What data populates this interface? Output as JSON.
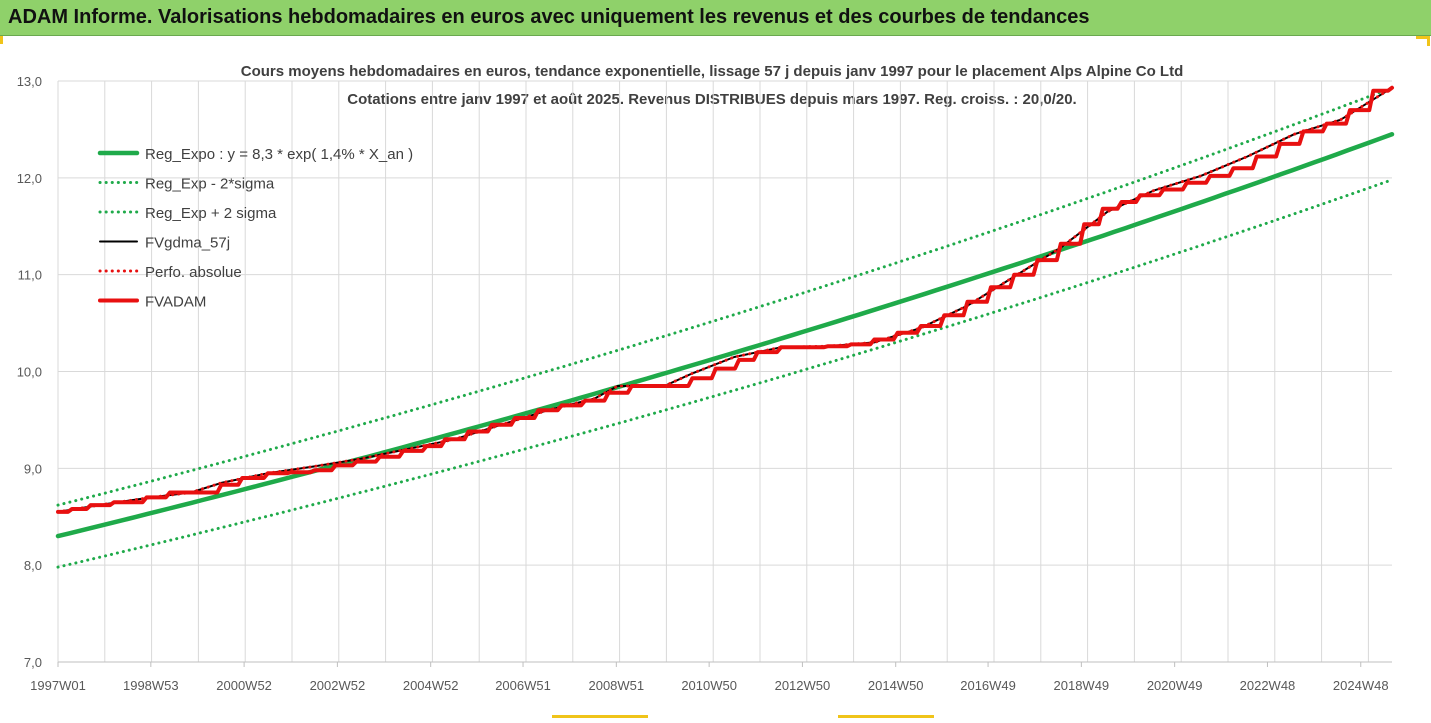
{
  "header": {
    "banner_title": "ADAM Informe. Valorisations hebdomadaires en euros avec uniquement les revenus et des courbes de tendances"
  },
  "colors": {
    "banner_bg": "#8fd16a",
    "reg_expo": "#1faa4a",
    "reg_bands": "#1faa4a",
    "fvgdma": "#000000",
    "perfo": "#e81010",
    "fvadam": "#e81010",
    "grid": "#d9d9d9"
  },
  "chart_data": {
    "type": "line",
    "title_line1": "Cours moyens hebdomadaires en euros, tendance exponentielle, lissage 57 j depuis janv 1997 pour le placement Alps Alpine Co Ltd",
    "title_line2": "Cotations entre janv 1997 et août 2025. Revenus DISTRIBUES depuis mars 1997. Reg. croiss. : 20,0/20.",
    "xlabel": "",
    "ylabel": "",
    "ylim": [
      7.0,
      13.0
    ],
    "xlim": [
      1997.0,
      2025.6
    ],
    "y_ticks": [
      "7,0",
      "8,0",
      "9,0",
      "10,0",
      "11,0",
      "12,0",
      "13,0"
    ],
    "x_ticks": [
      {
        "label": "1997W01",
        "x": 1997.0
      },
      {
        "label": "1998W53",
        "x": 1998.99
      },
      {
        "label": "2000W52",
        "x": 2000.99
      },
      {
        "label": "2002W52",
        "x": 2002.99
      },
      {
        "label": "2004W52",
        "x": 2004.99
      },
      {
        "label": "2006W51",
        "x": 2006.97
      },
      {
        "label": "2008W51",
        "x": 2008.97
      },
      {
        "label": "2010W50",
        "x": 2010.96
      },
      {
        "label": "2012W50",
        "x": 2012.96
      },
      {
        "label": "2014W50",
        "x": 2014.96
      },
      {
        "label": "2016W49",
        "x": 2016.94
      },
      {
        "label": "2018W49",
        "x": 2018.94
      },
      {
        "label": "2020W49",
        "x": 2020.94
      },
      {
        "label": "2022W48",
        "x": 2022.93
      },
      {
        "label": "2024W48",
        "x": 2024.93
      }
    ],
    "legend_position": "top-left",
    "grid": true,
    "series": [
      {
        "name": "Reg_Expo : y = 8,3 * exp( 1,4% *  X_an )",
        "style": "solid-thick",
        "color": "#1faa4a",
        "x": [
          1997.0,
          2025.6
        ],
        "values": [
          8.3,
          12.45
        ],
        "curve": "exponential"
      },
      {
        "name": "Reg_Exp - 2*sigma",
        "style": "dotted",
        "color": "#1faa4a",
        "x": [
          1997.0,
          2025.6
        ],
        "values": [
          7.98,
          11.98
        ],
        "curve": "exponential"
      },
      {
        "name": "Reg_Exp + 2 sigma",
        "style": "dotted",
        "color": "#1faa4a",
        "x": [
          1997.0,
          2025.6
        ],
        "values": [
          8.62,
          12.93
        ],
        "curve": "exponential"
      },
      {
        "name": "FVgdma_57j",
        "style": "solid",
        "color": "#000000",
        "x": [
          1997.0,
          1998.0,
          1999.0,
          1999.85,
          2000.5,
          2001.5,
          2002.5,
          2003.5,
          2004.5,
          2005.5,
          2006.5,
          2007.5,
          2008.5,
          2009.0,
          2010.0,
          2010.6,
          2011.5,
          2012.5,
          2013.5,
          2014.5,
          2015.5,
          2016.5,
          2017.5,
          2018.5,
          2019.5,
          2020.5,
          2021.5,
          2022.5,
          2023.5,
          2024.5,
          2025.6
        ],
        "values": [
          8.55,
          8.63,
          8.7,
          8.75,
          8.85,
          8.95,
          9.02,
          9.1,
          9.2,
          9.3,
          9.45,
          9.6,
          9.72,
          9.85,
          9.85,
          9.98,
          10.15,
          10.25,
          10.26,
          10.3,
          10.45,
          10.68,
          10.98,
          11.28,
          11.65,
          11.87,
          12.02,
          12.22,
          12.45,
          12.6,
          12.93
        ]
      },
      {
        "name": "Perfo. absolue",
        "style": "dotted",
        "color": "#e81010",
        "x": [
          1997.0,
          1998.0,
          1999.0,
          1999.85,
          2000.5,
          2001.5,
          2002.5,
          2003.5,
          2004.5,
          2005.5,
          2006.5,
          2007.5,
          2008.5,
          2009.0,
          2010.0,
          2010.6,
          2011.5,
          2012.5,
          2013.5,
          2014.5,
          2015.5,
          2016.5,
          2017.5,
          2018.5,
          2019.5,
          2020.5,
          2021.5,
          2022.5,
          2023.5,
          2024.5,
          2025.6
        ],
        "values": [
          8.55,
          8.63,
          8.7,
          8.75,
          8.85,
          8.95,
          9.02,
          9.1,
          9.2,
          9.3,
          9.45,
          9.6,
          9.72,
          9.85,
          9.85,
          9.98,
          10.15,
          10.25,
          10.26,
          10.3,
          10.45,
          10.68,
          10.98,
          11.28,
          11.65,
          11.87,
          12.02,
          12.22,
          12.45,
          12.6,
          12.93
        ]
      },
      {
        "name": "FVADAM",
        "style": "solid-thick-step",
        "color": "#e81010",
        "x": [
          1997.0,
          1997.3,
          1997.7,
          1998.2,
          1998.9,
          1999.4,
          1999.85,
          2000.5,
          2000.95,
          2001.5,
          2002.0,
          2002.5,
          2002.95,
          2003.4,
          2003.9,
          2004.4,
          2004.9,
          2005.3,
          2005.8,
          2006.3,
          2006.8,
          2007.3,
          2007.8,
          2008.3,
          2008.8,
          2009.3,
          2009.8,
          2010.2,
          2010.6,
          2011.1,
          2011.6,
          2012.0,
          2012.5,
          2013.0,
          2013.5,
          2014.0,
          2014.5,
          2015.0,
          2015.5,
          2016.0,
          2016.5,
          2017.0,
          2017.5,
          2018.0,
          2018.5,
          2019.0,
          2019.4,
          2019.8,
          2020.2,
          2020.7,
          2021.2,
          2021.7,
          2022.2,
          2022.7,
          2023.2,
          2023.7,
          2024.2,
          2024.7,
          2025.2,
          2025.6
        ],
        "values": [
          8.55,
          8.58,
          8.62,
          8.65,
          8.7,
          8.75,
          8.75,
          8.83,
          8.9,
          8.95,
          8.96,
          8.98,
          9.03,
          9.07,
          9.12,
          9.18,
          9.23,
          9.3,
          9.38,
          9.45,
          9.52,
          9.6,
          9.65,
          9.7,
          9.78,
          9.85,
          9.85,
          9.85,
          9.93,
          10.03,
          10.12,
          10.2,
          10.25,
          10.25,
          10.26,
          10.28,
          10.33,
          10.4,
          10.47,
          10.58,
          10.72,
          10.87,
          11.0,
          11.15,
          11.32,
          11.52,
          11.68,
          11.75,
          11.82,
          11.88,
          11.95,
          12.02,
          12.1,
          12.22,
          12.35,
          12.48,
          12.56,
          12.7,
          12.9,
          12.93
        ]
      }
    ]
  }
}
